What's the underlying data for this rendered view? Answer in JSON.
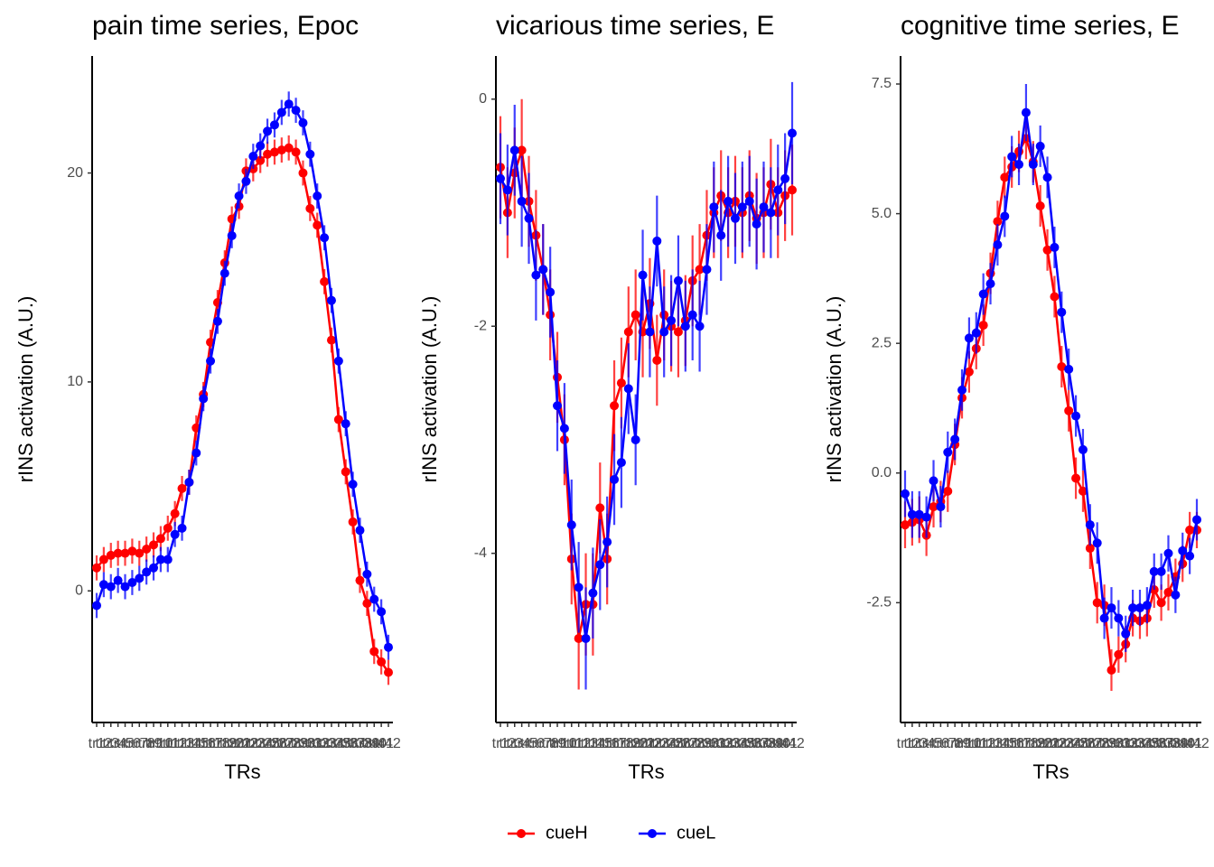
{
  "chart_data": [
    {
      "type": "line",
      "title": "pain time series, Epoc",
      "x_label": "TRs",
      "y_label": "rINS activation (A.U.)",
      "categories": [
        "tr1",
        "tr2",
        "tr3",
        "tr4",
        "tr5",
        "tr6",
        "tr7",
        "tr8",
        "tr9",
        "tr10",
        "tr11",
        "tr12",
        "tr13",
        "tr14",
        "tr15",
        "tr16",
        "tr17",
        "tr18",
        "tr19",
        "tr20",
        "tr21",
        "tr22",
        "tr23",
        "tr24",
        "tr25",
        "tr26",
        "tr27",
        "tr28",
        "tr29",
        "tr30",
        "tr31",
        "tr32",
        "tr33",
        "tr34",
        "tr35",
        "tr36",
        "tr37",
        "tr38",
        "tr39",
        "tr40",
        "tr41",
        "tr42"
      ],
      "ylim": [
        -6.3,
        25.6
      ],
      "yticks": [
        0,
        10,
        20
      ],
      "series": [
        {
          "name": "cueH",
          "color": "red",
          "values": [
            1.1,
            1.5,
            1.7,
            1.8,
            1.8,
            1.9,
            1.8,
            2.0,
            2.2,
            2.5,
            3.0,
            3.7,
            4.9,
            5.2,
            7.8,
            9.4,
            11.9,
            13.8,
            15.7,
            17.8,
            18.4,
            20.1,
            20.2,
            20.6,
            20.9,
            21.0,
            21.1,
            21.2,
            21.0,
            20.0,
            18.3,
            17.5,
            14.8,
            12.0,
            8.2,
            5.7,
            3.3,
            0.5,
            -0.6,
            -2.9,
            -3.4,
            -3.9
          ],
          "errors": [
            0.6,
            0.6,
            0.6,
            0.6,
            0.6,
            0.6,
            0.6,
            0.6,
            0.6,
            0.6,
            0.6,
            0.6,
            0.6,
            0.6,
            0.6,
            0.6,
            0.6,
            0.6,
            0.6,
            0.6,
            0.6,
            0.6,
            0.6,
            0.6,
            0.6,
            0.6,
            0.6,
            0.6,
            0.6,
            0.6,
            0.6,
            0.6,
            0.6,
            0.6,
            0.6,
            0.6,
            0.6,
            0.6,
            0.6,
            0.6,
            0.6,
            0.6
          ]
        },
        {
          "name": "cueL",
          "color": "blue",
          "values": [
            -0.7,
            0.3,
            0.2,
            0.5,
            0.2,
            0.4,
            0.6,
            0.9,
            1.1,
            1.5,
            1.5,
            2.7,
            3.0,
            5.2,
            6.6,
            9.2,
            11.0,
            12.9,
            15.2,
            17.0,
            18.9,
            19.6,
            20.8,
            21.3,
            22.0,
            22.3,
            22.9,
            23.3,
            23.0,
            22.4,
            20.9,
            18.9,
            16.9,
            13.9,
            11.0,
            8.0,
            5.1,
            2.9,
            0.8,
            -0.4,
            -1.0,
            -2.7
          ],
          "errors": [
            0.6,
            0.6,
            0.6,
            0.6,
            0.6,
            0.6,
            0.6,
            0.6,
            0.6,
            0.6,
            0.6,
            0.6,
            0.6,
            0.6,
            0.6,
            0.6,
            0.6,
            0.6,
            0.6,
            0.6,
            0.6,
            0.6,
            0.6,
            0.6,
            0.6,
            0.6,
            0.6,
            0.6,
            0.6,
            0.6,
            0.6,
            0.6,
            0.6,
            0.6,
            0.6,
            0.6,
            0.6,
            0.6,
            0.6,
            0.6,
            0.6,
            0.6
          ]
        }
      ]
    },
    {
      "type": "line",
      "title": "vicarious time series, E",
      "x_label": "TRs",
      "y_label": "rINS activation (A.U.)",
      "categories": [
        "tr1",
        "tr2",
        "tr3",
        "tr4",
        "tr5",
        "tr6",
        "tr7",
        "tr8",
        "tr9",
        "tr10",
        "tr11",
        "tr12",
        "tr13",
        "tr14",
        "tr15",
        "tr16",
        "tr17",
        "tr18",
        "tr19",
        "tr20",
        "tr21",
        "tr22",
        "tr23",
        "tr24",
        "tr25",
        "tr26",
        "tr27",
        "tr28",
        "tr29",
        "tr30",
        "tr31",
        "tr32",
        "tr33",
        "tr34",
        "tr35",
        "tr36",
        "tr37",
        "tr38",
        "tr39",
        "tr40",
        "tr41",
        "tr42"
      ],
      "ylim": [
        -5.49,
        0.38
      ],
      "yticks": [
        -4,
        -2,
        0
      ],
      "series": [
        {
          "name": "cueH",
          "color": "red",
          "values": [
            -0.6,
            -1.0,
            -0.65,
            -0.45,
            -0.9,
            -1.2,
            -1.5,
            -1.9,
            -2.45,
            -3.0,
            -4.05,
            -4.75,
            -4.45,
            -4.45,
            -3.6,
            -4.05,
            -2.7,
            -2.5,
            -2.05,
            -1.9,
            -2.05,
            -1.8,
            -2.3,
            -1.9,
            -2.0,
            -2.05,
            -1.95,
            -1.6,
            -1.5,
            -1.2,
            -1.0,
            -0.85,
            -1.0,
            -0.9,
            -1.0,
            -0.85,
            -1.05,
            -1.0,
            -0.75,
            -1.0,
            -0.85,
            -0.8
          ],
          "errors": [
            0.45,
            0.4,
            0.4,
            0.45,
            0.4,
            0.4,
            0.4,
            0.4,
            0.4,
            0.4,
            0.4,
            0.45,
            0.45,
            0.45,
            0.4,
            0.4,
            0.4,
            0.4,
            0.4,
            0.4,
            0.4,
            0.4,
            0.4,
            0.4,
            0.4,
            0.4,
            0.4,
            0.4,
            0.4,
            0.4,
            0.4,
            0.4,
            0.4,
            0.4,
            0.4,
            0.4,
            0.4,
            0.4,
            0.4,
            0.4,
            0.4,
            0.4
          ]
        },
        {
          "name": "cueL",
          "color": "blue",
          "values": [
            -0.7,
            -0.8,
            -0.45,
            -0.9,
            -1.05,
            -1.55,
            -1.5,
            -1.7,
            -2.7,
            -2.9,
            -3.75,
            -4.3,
            -4.75,
            -4.35,
            -4.1,
            -3.9,
            -3.35,
            -3.2,
            -2.55,
            -3.0,
            -1.55,
            -2.05,
            -1.25,
            -2.05,
            -1.95,
            -1.6,
            -2.0,
            -1.9,
            -2.0,
            -1.5,
            -0.95,
            -1.2,
            -0.9,
            -1.05,
            -0.95,
            -0.9,
            -1.1,
            -0.95,
            -1.0,
            -0.8,
            -0.7,
            -0.3
          ],
          "errors": [
            0.4,
            0.4,
            0.4,
            0.4,
            0.4,
            0.4,
            0.4,
            0.4,
            0.4,
            0.4,
            0.4,
            0.4,
            0.45,
            0.4,
            0.4,
            0.4,
            0.4,
            0.4,
            0.4,
            0.4,
            0.4,
            0.4,
            0.4,
            0.4,
            0.4,
            0.4,
            0.4,
            0.4,
            0.4,
            0.4,
            0.4,
            0.4,
            0.4,
            0.4,
            0.4,
            0.4,
            0.4,
            0.4,
            0.4,
            0.4,
            0.4,
            0.45
          ]
        }
      ]
    },
    {
      "type": "line",
      "title": "cognitive time series, E",
      "x_label": "TRs",
      "y_label": "rINS activation (A.U.)",
      "categories": [
        "tr1",
        "tr2",
        "tr3",
        "tr4",
        "tr5",
        "tr6",
        "tr7",
        "tr8",
        "tr9",
        "tr10",
        "tr11",
        "tr12",
        "tr13",
        "tr14",
        "tr15",
        "tr16",
        "tr17",
        "tr18",
        "tr19",
        "tr20",
        "tr21",
        "tr22",
        "tr23",
        "tr24",
        "tr25",
        "tr26",
        "tr27",
        "tr28",
        "tr29",
        "tr30",
        "tr31",
        "tr32",
        "tr33",
        "tr34",
        "tr35",
        "tr36",
        "tr37",
        "tr38",
        "tr39",
        "tr40",
        "tr41",
        "tr42"
      ],
      "ylim": [
        -4.81,
        8.04
      ],
      "yticks": [
        -2.5,
        {
          "value": 0,
          "label": "0.0"
        },
        2.5,
        {
          "value": 5,
          "label": "5.0"
        },
        7.5
      ],
      "series": [
        {
          "name": "cueH",
          "color": "red",
          "values": [
            -1.0,
            -0.95,
            -0.9,
            -1.2,
            -0.65,
            -0.55,
            -0.35,
            0.55,
            1.45,
            1.95,
            2.4,
            2.85,
            3.85,
            4.85,
            5.7,
            5.9,
            6.2,
            6.45,
            6.0,
            5.15,
            4.3,
            3.4,
            2.05,
            1.2,
            -0.1,
            -0.35,
            -1.45,
            -2.5,
            -2.55,
            -3.8,
            -3.5,
            -3.3,
            -2.8,
            -2.85,
            -2.8,
            -2.25,
            -2.5,
            -2.3,
            -2.0,
            -1.75,
            -1.1,
            -1.1
          ],
          "errors": [
            0.45,
            0.45,
            0.45,
            0.4,
            0.4,
            0.4,
            0.4,
            0.4,
            0.4,
            0.4,
            0.4,
            0.4,
            0.4,
            0.4,
            0.4,
            0.4,
            0.4,
            0.4,
            0.4,
            0.4,
            0.4,
            0.4,
            0.4,
            0.4,
            0.4,
            0.4,
            0.4,
            0.4,
            0.4,
            0.4,
            0.35,
            0.35,
            0.35,
            0.35,
            0.35,
            0.35,
            0.35,
            0.35,
            0.35,
            0.35,
            0.35,
            0.35
          ]
        },
        {
          "name": "cueL",
          "color": "blue",
          "values": [
            -0.4,
            -0.8,
            -0.8,
            -0.85,
            -0.15,
            -0.65,
            0.4,
            0.65,
            1.6,
            2.6,
            2.7,
            3.45,
            3.65,
            4.4,
            4.95,
            6.1,
            5.95,
            6.95,
            5.95,
            6.3,
            5.7,
            4.35,
            3.1,
            2.0,
            1.1,
            0.45,
            -1.0,
            -1.35,
            -2.8,
            -2.6,
            -2.8,
            -3.1,
            -2.6,
            -2.6,
            -2.55,
            -1.9,
            -1.9,
            -1.55,
            -2.35,
            -1.5,
            -1.6,
            -0.9
          ],
          "errors": [
            0.45,
            0.45,
            0.45,
            0.4,
            0.4,
            0.4,
            0.4,
            0.4,
            0.4,
            0.4,
            0.4,
            0.4,
            0.4,
            0.4,
            0.4,
            0.4,
            0.4,
            0.55,
            0.4,
            0.4,
            0.4,
            0.4,
            0.4,
            0.4,
            0.4,
            0.4,
            0.4,
            0.4,
            0.4,
            0.4,
            0.35,
            0.35,
            0.35,
            0.35,
            0.35,
            0.35,
            0.35,
            0.35,
            0.35,
            0.35,
            0.35,
            0.4
          ]
        }
      ]
    }
  ]
}
